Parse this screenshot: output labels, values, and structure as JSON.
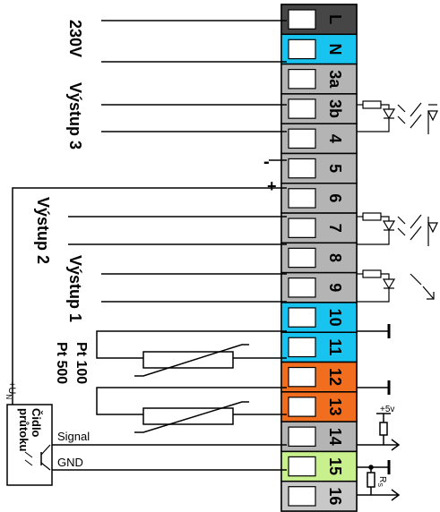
{
  "diagram": {
    "terminals": [
      {
        "label": "L",
        "color": "#464646"
      },
      {
        "label": "N",
        "color": "#19c3f0"
      },
      {
        "label": "3a",
        "color": "#b4b4b4"
      },
      {
        "label": "3b",
        "color": "#b4b4b4"
      },
      {
        "label": "4",
        "color": "#b4b4b4"
      },
      {
        "label": "5",
        "color": "#b4b4b4"
      },
      {
        "label": "6",
        "color": "#b4b4b4"
      },
      {
        "label": "7",
        "color": "#b4b4b4"
      },
      {
        "label": "8",
        "color": "#b4b4b4"
      },
      {
        "label": "9",
        "color": "#b4b4b4"
      },
      {
        "label": "10",
        "color": "#19c3f0"
      },
      {
        "label": "11",
        "color": "#19c3f0"
      },
      {
        "label": "12",
        "color": "#f06e1e"
      },
      {
        "label": "13",
        "color": "#f06e1e"
      },
      {
        "label": "14",
        "color": "#b4b4b4"
      },
      {
        "label": "15",
        "color": "#c8f08c"
      },
      {
        "label": "16",
        "color": "#c8c8c8"
      }
    ],
    "labels": {
      "v230": "230V",
      "vystup3": "Výstup 3",
      "vystup2": "Výstup 2",
      "vystup1": "Výstup 1",
      "minus": "-",
      "plus": "+",
      "pt100": "Pt 100",
      "pt500": "Pt 500",
      "sensor_line1": "Čidlo",
      "sensor_line2": "průtoku",
      "un": "+U",
      "un_sub": "N",
      "signal": "Signal",
      "gnd": "GND",
      "plus5v": "+5v",
      "rs": "R",
      "rs_sub": "S"
    }
  }
}
